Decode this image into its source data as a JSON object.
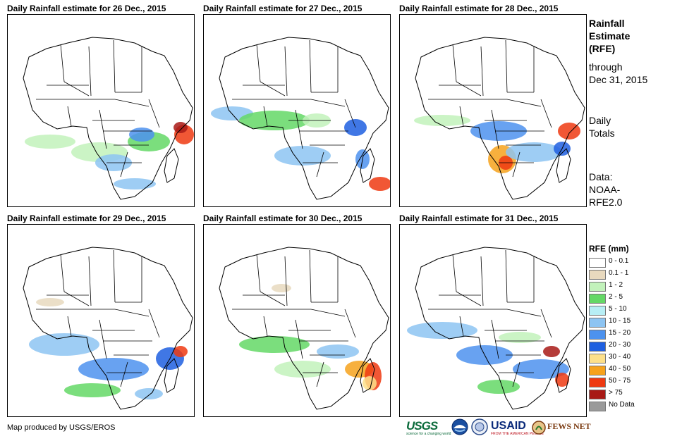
{
  "panels": [
    {
      "id": "p1",
      "title": "Daily Rainfall estimate for 26 Dec., 2015"
    },
    {
      "id": "p2",
      "title": "Daily Rainfall estimate for 27 Dec., 2015"
    },
    {
      "id": "p3",
      "title": "Daily Rainfall estimate for 28 Dec., 2015"
    },
    {
      "id": "p4",
      "title": "Daily Rainfall estimate for 29 Dec., 2015"
    },
    {
      "id": "p5",
      "title": "Daily Rainfall estimate for 30 Dec., 2015"
    },
    {
      "id": "p6",
      "title": "Daily Rainfall estimate for 31 Dec., 2015"
    }
  ],
  "side": {
    "title_lines": [
      "Rainfall",
      "Estimate",
      "(RFE)"
    ],
    "through_lines": [
      "through",
      "Dec 31, 2015"
    ],
    "daily_lines": [
      "Daily",
      "Totals"
    ],
    "data_lines": [
      "Data:",
      "NOAA-",
      "RFE2.0"
    ]
  },
  "legend": {
    "title": "RFE (mm)",
    "items": [
      {
        "label": "0 - 0.1",
        "color": "#ffffff"
      },
      {
        "label": "0.1 - 1",
        "color": "#e8d9be"
      },
      {
        "label": "1 - 2",
        "color": "#c2f2bb"
      },
      {
        "label": "2 - 5",
        "color": "#64d866"
      },
      {
        "label": "5 - 10",
        "color": "#b7eef5"
      },
      {
        "label": "10 - 15",
        "color": "#8dc4f2"
      },
      {
        "label": "15 - 20",
        "color": "#4d92ee"
      },
      {
        "label": "20 - 30",
        "color": "#1e5fe0"
      },
      {
        "label": "30 - 40",
        "color": "#fde08a"
      },
      {
        "label": "40 - 50",
        "color": "#f6a21c"
      },
      {
        "label": "50 - 75",
        "color": "#ee3a12"
      },
      {
        "label": "> 75",
        "color": "#a81a16"
      },
      {
        "label": "No Data",
        "color": "#9a9a9a"
      }
    ]
  },
  "credit": "Map produced by USGS/EROS",
  "logos": {
    "usgs": "USGS",
    "usgs_tagline": "science for a changing world",
    "usaid": "USAID",
    "usaid_tagline": "FROM THE AMERICAN PEOPLE",
    "fews": "FEWS NET"
  }
}
